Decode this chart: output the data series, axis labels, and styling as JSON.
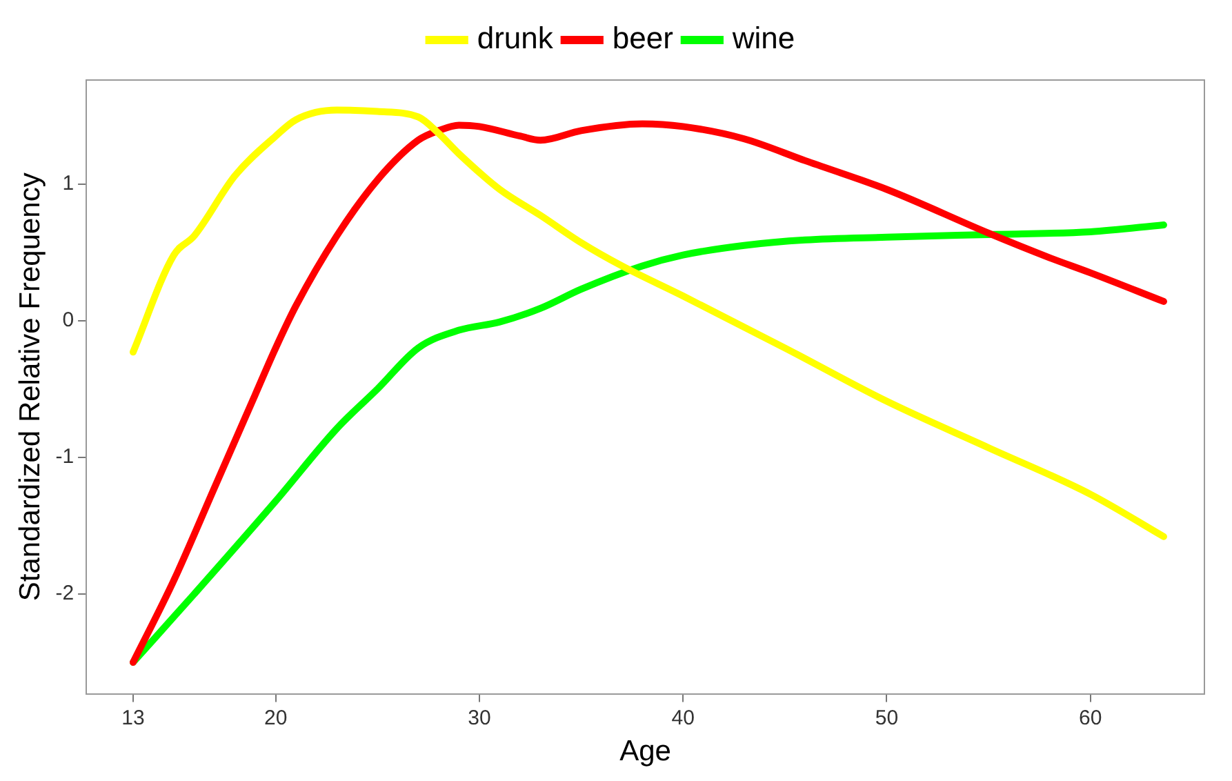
{
  "chart_data": {
    "type": "line",
    "xlabel": "Age",
    "ylabel": "Standardized Relative Frequency",
    "xlim": [
      10.7,
      65.6
    ],
    "ylim": [
      -2.73,
      1.76
    ],
    "xticks": [
      13,
      20,
      30,
      40,
      50,
      60
    ],
    "yticks": [
      -2,
      -1,
      0,
      1
    ],
    "grid": false,
    "legend": "top",
    "marker": "none",
    "line_style": "solid",
    "series": [
      {
        "name": "drunk",
        "color": "#ffff00",
        "x": [
          13,
          15,
          16,
          18,
          20,
          21,
          23,
          25,
          27,
          28,
          29,
          31,
          33,
          35,
          37,
          40,
          45,
          50,
          55,
          60,
          63.6
        ],
        "values": [
          -0.23,
          0.48,
          0.62,
          1.06,
          1.35,
          1.47,
          1.54,
          1.53,
          1.49,
          1.37,
          1.22,
          0.96,
          0.77,
          0.57,
          0.4,
          0.18,
          -0.2,
          -0.59,
          -0.93,
          -1.27,
          -1.58
        ]
      },
      {
        "name": "beer",
        "color": "#ff0000",
        "x": [
          13,
          15,
          17,
          19,
          20,
          21,
          23,
          25,
          27,
          28,
          29,
          30,
          32,
          33,
          35,
          38,
          40,
          43,
          46,
          50,
          55,
          58,
          60,
          63.6
        ],
        "values": [
          -2.5,
          -1.9,
          -1.22,
          -0.54,
          -0.2,
          0.11,
          0.62,
          1.03,
          1.32,
          1.39,
          1.43,
          1.42,
          1.35,
          1.32,
          1.39,
          1.44,
          1.42,
          1.33,
          1.17,
          0.96,
          0.64,
          0.46,
          0.35,
          0.14
        ]
      },
      {
        "name": "wine",
        "color": "#00ff00",
        "x": [
          13,
          16,
          20,
          23,
          25,
          27,
          29,
          31,
          33,
          35,
          38,
          40,
          43,
          46,
          50,
          55,
          60,
          63.6
        ],
        "values": [
          -2.5,
          -2.0,
          -1.32,
          -0.79,
          -0.5,
          -0.2,
          -0.07,
          -0.01,
          0.09,
          0.23,
          0.4,
          0.48,
          0.55,
          0.59,
          0.61,
          0.63,
          0.65,
          0.7
        ]
      }
    ]
  }
}
